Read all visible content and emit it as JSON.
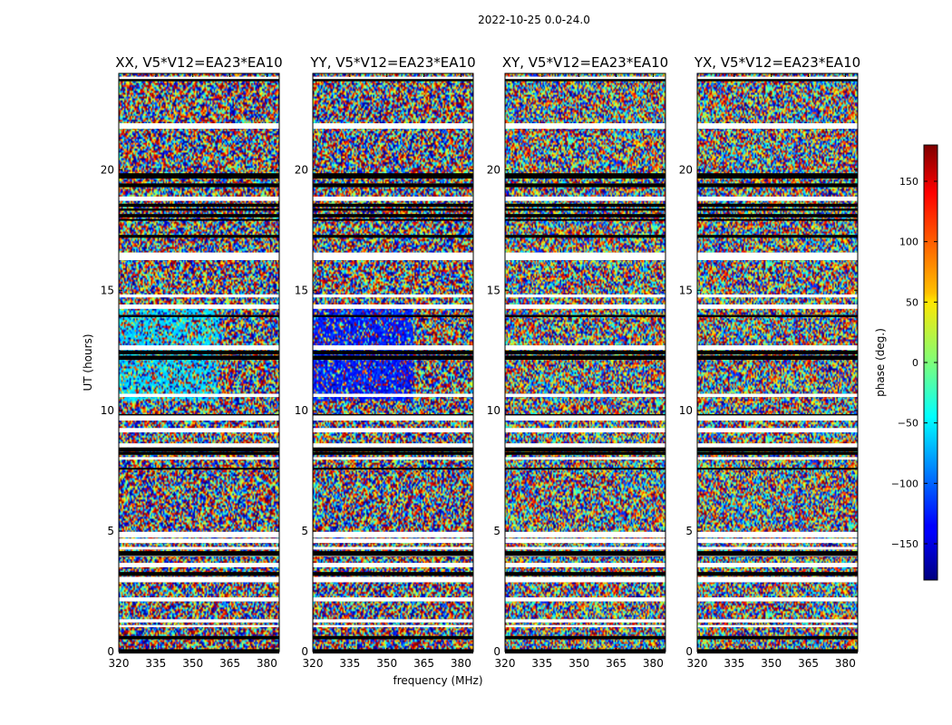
{
  "figure": {
    "suptitle": "2022-10-25 0.0-24.0"
  },
  "chart_data": {
    "type": "heatmap",
    "panels": [
      {
        "title": "XX, V5*V12=EA23*EA10"
      },
      {
        "title": "YY, V5*V12=EA23*EA10"
      },
      {
        "title": "XY, V5*V12=EA23*EA10"
      },
      {
        "title": "YX, V5*V12=EA23*EA10"
      }
    ],
    "xlabel": "frequency (MHz)",
    "ylabel": "UT (hours)",
    "xlim": [
      320,
      385
    ],
    "ylim": [
      0,
      24
    ],
    "xticks": [
      320,
      335,
      350,
      365,
      380
    ],
    "yticks": [
      0,
      5,
      10,
      15,
      20
    ],
    "colorbar": {
      "label": "phase (deg.)",
      "range": [
        -180,
        180
      ],
      "ticks": [
        -150,
        -100,
        -50,
        0,
        50,
        100,
        150
      ],
      "tick_labels": [
        "−150",
        "−100",
        "−50",
        "0",
        "50",
        "100",
        "150"
      ],
      "colormap": "jet"
    },
    "grid": false
  }
}
